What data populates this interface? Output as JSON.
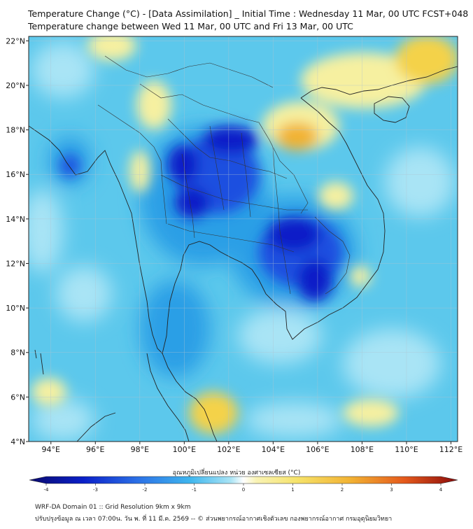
{
  "header": {
    "title_line1": "Temperature Change (°C) - [Data Assimilation] _ Initial Time : Wednesday 11 Mar, 00 UTC FCST+048",
    "title_line2": "Temperature change between Wed 11 Mar, 00 UTC and Fri 13 Mar, 00 UTC"
  },
  "map": {
    "lon_ticks": [
      {
        "value": 94,
        "label": "94°E"
      },
      {
        "value": 96,
        "label": "96°E"
      },
      {
        "value": 98,
        "label": "98°E"
      },
      {
        "value": 100,
        "label": "100°E"
      },
      {
        "value": 102,
        "label": "102°E"
      },
      {
        "value": 104,
        "label": "104°E"
      },
      {
        "value": 106,
        "label": "106°E"
      },
      {
        "value": 108,
        "label": "108°E"
      },
      {
        "value": 110,
        "label": "110°E"
      },
      {
        "value": 112,
        "label": "112°E"
      }
    ],
    "lat_ticks": [
      {
        "value": 4,
        "label": "4°N"
      },
      {
        "value": 6,
        "label": "6°N"
      },
      {
        "value": 8,
        "label": "8°N"
      },
      {
        "value": 10,
        "label": "10°N"
      },
      {
        "value": 12,
        "label": "12°N"
      },
      {
        "value": 14,
        "label": "14°N"
      },
      {
        "value": 16,
        "label": "16°N"
      },
      {
        "value": 18,
        "label": "18°N"
      },
      {
        "value": 20,
        "label": "20°N"
      },
      {
        "value": 22,
        "label": "22°N"
      }
    ],
    "lon_range": [
      93,
      112.3
    ],
    "lat_range": [
      4,
      22.2
    ],
    "field_colors": {
      "background": "#5cc8ec",
      "light": "#a9e4f5",
      "medium": "#2b9fe6",
      "dark": "#1f4fe0",
      "darkest": "#0a1fc8",
      "warm_light": "#f6f0a0",
      "warm": "#f4d24a",
      "warm_strong": "#f2b233"
    }
  },
  "colorbar": {
    "label": "อุณหภูมิเปลี่ยนแปลง หน่วย องศาเซลเซียส (°C)",
    "ticks": [
      {
        "value": -4,
        "label": "-4"
      },
      {
        "value": -3,
        "label": "-3"
      },
      {
        "value": -2,
        "label": "-2"
      },
      {
        "value": -1,
        "label": "-1"
      },
      {
        "value": 0,
        "label": "0"
      },
      {
        "value": 1,
        "label": "1"
      },
      {
        "value": 2,
        "label": "2"
      },
      {
        "value": 3,
        "label": "3"
      },
      {
        "value": 4,
        "label": "4"
      }
    ],
    "min": -4,
    "max": 4
  },
  "footer": {
    "line1": "WRF-DA Domain 01 :: Grid Resolution 9km x 9km",
    "line2": "ปรับปรุงข้อมูล ณ เวลา 07:00น. วัน พ. ที่ 11 มี.ค. 2569 -- © ส่วนพยากรณ์อากาศเชิงตัวเลข กองพยากรณ์อากาศ กรมอุตุนิยมวิทยา"
  }
}
